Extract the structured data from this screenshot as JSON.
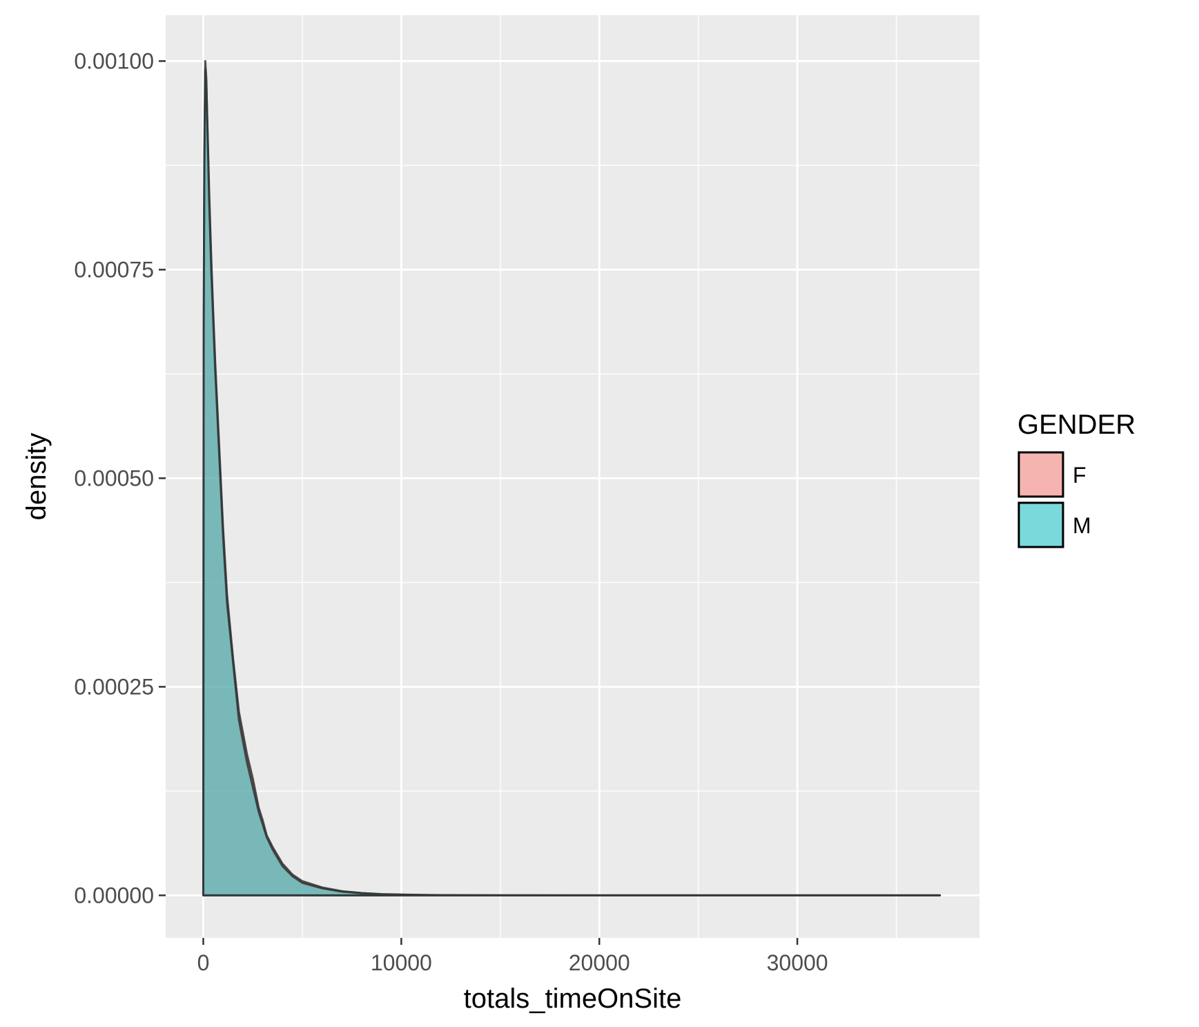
{
  "chart_data": {
    "type": "area",
    "title": "",
    "xlabel": "totals_timeOnSite",
    "ylabel": "density",
    "xlim": [
      -1900,
      39200
    ],
    "ylim": [
      -5.1e-05,
      0.001055
    ],
    "x_ticks": [
      0,
      10000,
      20000,
      30000
    ],
    "x_tick_labels": [
      "0",
      "10000",
      "20000",
      "30000"
    ],
    "y_ticks": [
      0,
      0.00025,
      0.0005,
      0.00075,
      0.001
    ],
    "y_tick_labels": [
      "0.00000",
      "0.00025",
      "0.00050",
      "0.00075",
      "0.00100"
    ],
    "grid": true,
    "legend": {
      "title": "GENDER",
      "position": "right",
      "entries": [
        {
          "label": "F",
          "color": "#F8766D"
        },
        {
          "label": "M",
          "color": "#00BFC4"
        }
      ]
    },
    "series": [
      {
        "name": "F",
        "color": "#F8766D",
        "x": [
          0,
          20,
          50,
          100,
          150,
          200,
          300,
          400,
          500,
          600,
          800,
          1000,
          1200,
          1500,
          1800,
          2000,
          2200,
          2500,
          2800,
          3000,
          3200,
          3500,
          4000,
          4500,
          5000,
          6000,
          7000,
          8000,
          9000,
          10000,
          11000,
          12000,
          13000,
          15000,
          20000,
          25000,
          30000,
          37200
        ],
        "y": [
          0,
          0.00066,
          0.00085,
          0.00099,
          0.000975,
          0.00093,
          0.00084,
          0.000765,
          0.0007,
          0.00064,
          0.00054,
          0.00044,
          0.00036,
          0.000285,
          0.00022,
          0.000195,
          0.00017,
          0.00014,
          0.000105,
          9e-05,
          7.2e-05,
          5.8e-05,
          3.8e-05,
          2.5e-05,
          1.7e-05,
          9.5e-06,
          5e-06,
          2.8e-06,
          1.5e-06,
          9e-07,
          5e-07,
          3e-07,
          2e-07,
          1e-07,
          2e-08,
          1e-08,
          5e-09,
          0
        ]
      },
      {
        "name": "M",
        "color": "#00BFC4",
        "x": [
          0,
          20,
          50,
          100,
          150,
          200,
          300,
          400,
          500,
          600,
          800,
          1000,
          1200,
          1500,
          1800,
          2000,
          2200,
          2500,
          2800,
          3000,
          3200,
          3500,
          4000,
          4500,
          5000,
          6000,
          7000,
          8000,
          9000,
          10000,
          11000,
          12000,
          13000,
          15000,
          20000,
          25000,
          30000,
          37200
        ],
        "y": [
          0,
          0.00068,
          0.00088,
          0.001,
          0.00098,
          0.00093,
          0.00083,
          0.00075,
          0.00069,
          0.00063,
          0.00053,
          0.00043,
          0.00035,
          0.00028,
          0.00021,
          0.000185,
          0.00016,
          0.00013,
          0.0001,
          8.5e-05,
          7e-05,
          5.5e-05,
          3.5e-05,
          2.3e-05,
          1.5e-05,
          8.5e-06,
          4.5e-06,
          2.5e-06,
          1.3e-06,
          8e-07,
          4e-07,
          2e-07,
          1e-07,
          5e-08,
          1e-08,
          5e-09,
          2e-09,
          0
        ]
      }
    ]
  }
}
